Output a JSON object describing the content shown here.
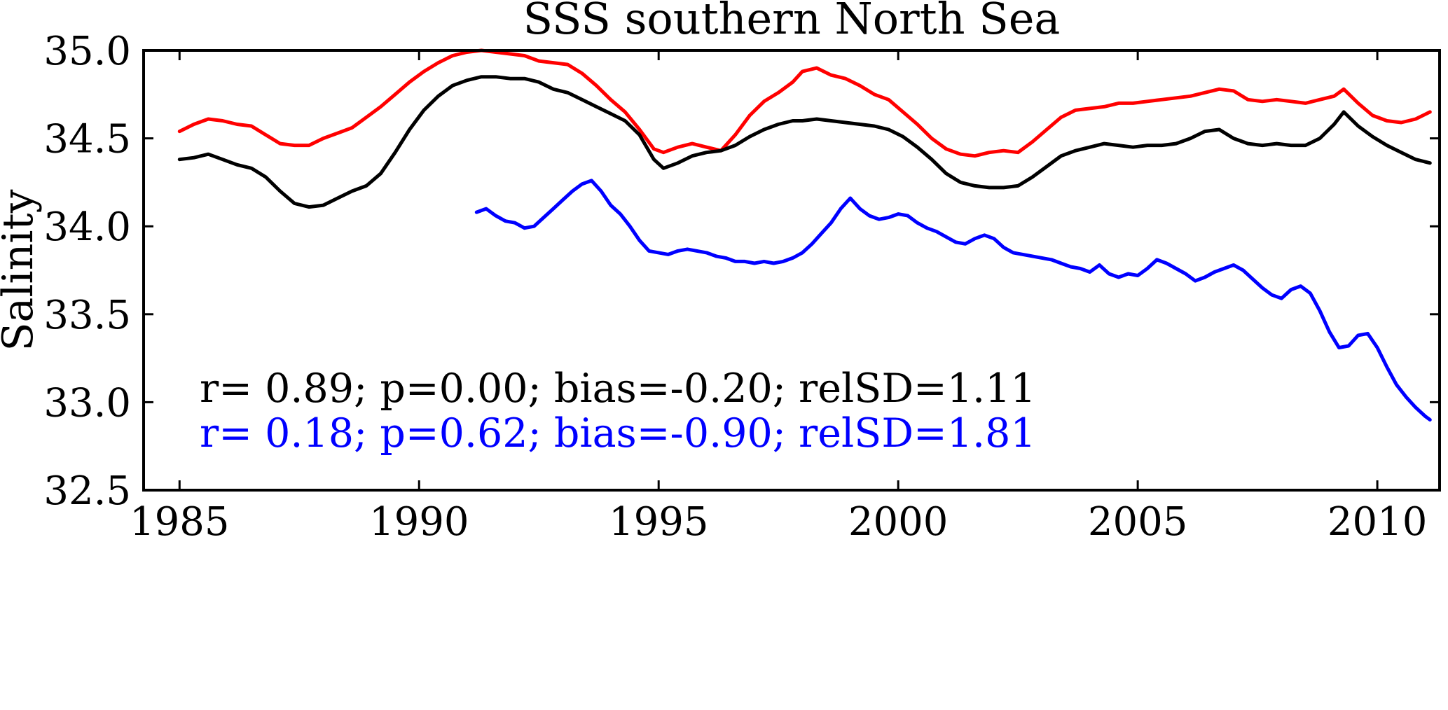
{
  "chart_data": {
    "type": "line",
    "title": "SSS southern North Sea",
    "xlabel": "",
    "ylabel": "Salinity",
    "xlim": [
      1984.25,
      2011.3
    ],
    "ylim": [
      32.5,
      35.0
    ],
    "grid": false,
    "legend_position": "none",
    "xticks": [
      1985,
      1990,
      1995,
      2000,
      2005,
      2010
    ],
    "xtick_labels": [
      "1985",
      "1990",
      "1995",
      "2000",
      "2005",
      "2010"
    ],
    "yticks": [
      32.5,
      33.0,
      33.5,
      34.0,
      34.5,
      35.0
    ],
    "ytick_labels": [
      "32.5",
      "33.0",
      "33.5",
      "34.0",
      "34.5",
      "35.0"
    ],
    "series": [
      {
        "name": "red-series",
        "color": "#ff0000",
        "x": [
          1985.0,
          1985.3,
          1985.6,
          1985.9,
          1986.2,
          1986.5,
          1986.8,
          1987.1,
          1987.4,
          1987.7,
          1988.0,
          1988.3,
          1988.6,
          1988.9,
          1989.2,
          1989.5,
          1989.8,
          1990.1,
          1990.4,
          1990.7,
          1991.0,
          1991.3,
          1991.6,
          1991.9,
          1992.2,
          1992.5,
          1992.8,
          1993.1,
          1993.4,
          1993.7,
          1994.0,
          1994.3,
          1994.6,
          1994.9,
          1995.1,
          1995.4,
          1995.7,
          1996.0,
          1996.3,
          1996.6,
          1996.9,
          1997.2,
          1997.5,
          1997.8,
          1998.0,
          1998.3,
          1998.6,
          1998.9,
          1999.2,
          1999.5,
          1999.8,
          2000.1,
          2000.4,
          2000.7,
          2001.0,
          2001.3,
          2001.6,
          2001.9,
          2002.2,
          2002.5,
          2002.8,
          2003.1,
          2003.4,
          2003.7,
          2004.0,
          2004.3,
          2004.6,
          2004.9,
          2005.2,
          2005.5,
          2005.8,
          2006.1,
          2006.4,
          2006.7,
          2007.0,
          2007.3,
          2007.6,
          2007.9,
          2008.2,
          2008.5,
          2008.8,
          2009.1,
          2009.3,
          2009.6,
          2009.9,
          2010.2,
          2010.5,
          2010.8,
          2011.1
        ],
        "values": [
          34.54,
          34.58,
          34.61,
          34.6,
          34.58,
          34.57,
          34.52,
          34.47,
          34.46,
          34.46,
          34.5,
          34.53,
          34.56,
          34.62,
          34.68,
          34.75,
          34.82,
          34.88,
          34.93,
          34.97,
          34.99,
          35.0,
          34.99,
          34.98,
          34.97,
          34.94,
          34.93,
          34.92,
          34.87,
          34.8,
          34.72,
          34.65,
          34.55,
          34.44,
          34.42,
          34.45,
          34.47,
          34.45,
          34.43,
          34.52,
          34.63,
          34.71,
          34.76,
          34.82,
          34.88,
          34.9,
          34.86,
          34.84,
          34.8,
          34.75,
          34.72,
          34.65,
          34.58,
          34.5,
          34.44,
          34.41,
          34.4,
          34.42,
          34.43,
          34.42,
          34.48,
          34.55,
          34.62,
          34.66,
          34.67,
          34.68,
          34.7,
          34.7,
          34.71,
          34.72,
          34.73,
          34.74,
          34.76,
          34.78,
          34.77,
          34.72,
          34.71,
          34.72,
          34.71,
          34.7,
          34.72,
          34.74,
          34.78,
          34.7,
          34.63,
          34.6,
          34.59,
          34.61,
          34.65
        ]
      },
      {
        "name": "black-series",
        "color": "#000000",
        "x": [
          1985.0,
          1985.3,
          1985.6,
          1985.9,
          1986.2,
          1986.5,
          1986.8,
          1987.1,
          1987.4,
          1987.7,
          1988.0,
          1988.3,
          1988.6,
          1988.9,
          1989.2,
          1989.5,
          1989.8,
          1990.1,
          1990.4,
          1990.7,
          1991.0,
          1991.3,
          1991.6,
          1991.9,
          1992.2,
          1992.5,
          1992.8,
          1993.1,
          1993.4,
          1993.7,
          1994.0,
          1994.3,
          1994.6,
          1994.9,
          1995.1,
          1995.4,
          1995.7,
          1996.0,
          1996.3,
          1996.6,
          1996.9,
          1997.2,
          1997.5,
          1997.8,
          1998.0,
          1998.3,
          1998.6,
          1998.9,
          1999.2,
          1999.5,
          1999.8,
          2000.1,
          2000.4,
          2000.7,
          2001.0,
          2001.3,
          2001.6,
          2001.9,
          2002.2,
          2002.5,
          2002.8,
          2003.1,
          2003.4,
          2003.7,
          2004.0,
          2004.3,
          2004.6,
          2004.9,
          2005.2,
          2005.5,
          2005.8,
          2006.1,
          2006.4,
          2006.7,
          2007.0,
          2007.3,
          2007.6,
          2007.9,
          2008.2,
          2008.5,
          2008.8,
          2009.1,
          2009.3,
          2009.6,
          2009.9,
          2010.2,
          2010.5,
          2010.8,
          2011.1
        ],
        "values": [
          34.38,
          34.39,
          34.41,
          34.38,
          34.35,
          34.33,
          34.28,
          34.2,
          34.13,
          34.11,
          34.12,
          34.16,
          34.2,
          34.23,
          34.3,
          34.42,
          34.55,
          34.66,
          34.74,
          34.8,
          34.83,
          34.85,
          34.85,
          34.84,
          34.84,
          34.82,
          34.78,
          34.76,
          34.72,
          34.68,
          34.64,
          34.6,
          34.52,
          34.38,
          34.33,
          34.36,
          34.4,
          34.42,
          34.43,
          34.46,
          34.51,
          34.55,
          34.58,
          34.6,
          34.6,
          34.61,
          34.6,
          34.59,
          34.58,
          34.57,
          34.55,
          34.51,
          34.45,
          34.38,
          34.3,
          34.25,
          34.23,
          34.22,
          34.22,
          34.23,
          34.28,
          34.34,
          34.4,
          34.43,
          34.45,
          34.47,
          34.46,
          34.45,
          34.46,
          34.46,
          34.47,
          34.5,
          34.54,
          34.55,
          34.5,
          34.47,
          34.46,
          34.47,
          34.46,
          34.46,
          34.5,
          34.58,
          34.65,
          34.57,
          34.51,
          34.46,
          34.42,
          34.38,
          34.36
        ]
      },
      {
        "name": "blue-series",
        "color": "#0000ff",
        "x": [
          1991.2,
          1991.4,
          1991.6,
          1991.8,
          1992.0,
          1992.2,
          1992.4,
          1992.6,
          1992.8,
          1993.0,
          1993.2,
          1993.4,
          1993.6,
          1993.8,
          1994.0,
          1994.2,
          1994.4,
          1994.6,
          1994.8,
          1995.0,
          1995.2,
          1995.4,
          1995.6,
          1995.8,
          1996.0,
          1996.2,
          1996.4,
          1996.6,
          1996.8,
          1997.0,
          1997.2,
          1997.4,
          1997.6,
          1997.8,
          1998.0,
          1998.2,
          1998.4,
          1998.6,
          1998.8,
          1999.0,
          1999.2,
          1999.4,
          1999.6,
          1999.8,
          2000.0,
          2000.2,
          2000.4,
          2000.6,
          2000.8,
          2001.0,
          2001.2,
          2001.4,
          2001.6,
          2001.8,
          2002.0,
          2002.2,
          2002.4,
          2002.6,
          2002.8,
          2003.0,
          2003.2,
          2003.4,
          2003.6,
          2003.8,
          2004.0,
          2004.2,
          2004.4,
          2004.6,
          2004.8,
          2005.0,
          2005.2,
          2005.4,
          2005.6,
          2005.8,
          2006.0,
          2006.2,
          2006.4,
          2006.6,
          2006.8,
          2007.0,
          2007.2,
          2007.4,
          2007.6,
          2007.8,
          2008.0,
          2008.2,
          2008.4,
          2008.6,
          2008.8,
          2009.0,
          2009.2,
          2009.4,
          2009.6,
          2009.8,
          2010.0,
          2010.2,
          2010.4,
          2010.6,
          2010.8,
          2011.0,
          2011.1
        ],
        "values": [
          34.08,
          34.1,
          34.06,
          34.03,
          34.02,
          33.99,
          34.0,
          34.05,
          34.1,
          34.15,
          34.2,
          34.24,
          34.26,
          34.2,
          34.12,
          34.07,
          34.0,
          33.92,
          33.86,
          33.85,
          33.84,
          33.86,
          33.87,
          33.86,
          33.85,
          33.83,
          33.82,
          33.8,
          33.8,
          33.79,
          33.8,
          33.79,
          33.8,
          33.82,
          33.85,
          33.9,
          33.96,
          34.02,
          34.1,
          34.16,
          34.1,
          34.06,
          34.04,
          34.05,
          34.07,
          34.06,
          34.02,
          33.99,
          33.97,
          33.94,
          33.91,
          33.9,
          33.93,
          33.95,
          33.93,
          33.88,
          33.85,
          33.84,
          33.83,
          33.82,
          33.81,
          33.79,
          33.77,
          33.76,
          33.74,
          33.78,
          33.73,
          33.71,
          33.73,
          33.72,
          33.76,
          33.81,
          33.79,
          33.76,
          33.73,
          33.69,
          33.71,
          33.74,
          33.76,
          33.78,
          33.75,
          33.7,
          33.65,
          33.61,
          33.59,
          33.64,
          33.66,
          33.62,
          33.52,
          33.4,
          33.31,
          33.32,
          33.38,
          33.39,
          33.31,
          33.2,
          33.1,
          33.03,
          32.97,
          32.92,
          32.9
        ]
      }
    ],
    "annotations": [
      {
        "text": "r= 0.89; p=0.00; bias=-0.20; relSD=1.11",
        "color": "#000000"
      },
      {
        "text": "r= 0.18; p=0.62; bias=-0.90; relSD=1.81",
        "color": "#0000ff"
      }
    ]
  }
}
